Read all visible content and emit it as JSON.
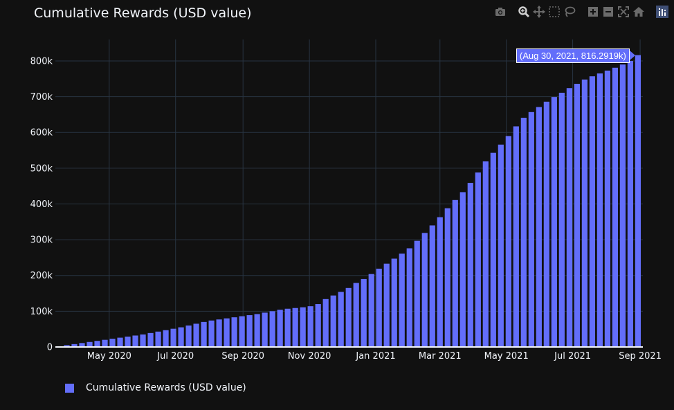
{
  "header": {
    "title": "Cumulative Rewards (USD value)"
  },
  "modebar": {
    "buttons": [
      {
        "name": "camera-icon"
      },
      {
        "name": "zoom-icon"
      },
      {
        "name": "pan-icon"
      },
      {
        "name": "box-select-icon"
      },
      {
        "name": "lasso-select-icon"
      },
      {
        "name": "zoom-in-icon"
      },
      {
        "name": "zoom-out-icon"
      },
      {
        "name": "autoscale-icon"
      },
      {
        "name": "reset-axes-icon"
      },
      {
        "name": "plotly-logo-icon"
      }
    ]
  },
  "tooltip": {
    "text": "(Aug 30, 2021, 816.2919k)"
  },
  "legend": {
    "label": "Cumulative Rewards (USD value)"
  },
  "colors": {
    "bar": "#636efa",
    "background": "#111111",
    "grid": "#283442",
    "text": "#f2f5fa"
  },
  "chart_data": {
    "type": "bar",
    "title": "Cumulative Rewards (USD value)",
    "xlabel": "",
    "ylabel": "",
    "ylim": [
      0,
      860000
    ],
    "grid": true,
    "legend_position": "bottom-left",
    "x_tick_labels": [
      "May 2020",
      "Jul 2020",
      "Sep 2020",
      "Nov 2020",
      "Jan 2021",
      "Mar 2021",
      "May 2021",
      "Jul 2021",
      "Sep 2021"
    ],
    "y_ticks": [
      0,
      100000,
      200000,
      300000,
      400000,
      500000,
      600000,
      700000,
      800000
    ],
    "y_tick_labels": [
      "0",
      "100k",
      "200k",
      "300k",
      "400k",
      "500k",
      "600k",
      "700k",
      "800k"
    ],
    "series": [
      {
        "name": "Cumulative Rewards (USD value)",
        "x": [
          "2020-03-16",
          "2020-03-23",
          "2020-03-30",
          "2020-04-06",
          "2020-04-13",
          "2020-04-20",
          "2020-04-27",
          "2020-05-04",
          "2020-05-11",
          "2020-05-18",
          "2020-05-25",
          "2020-06-01",
          "2020-06-08",
          "2020-06-15",
          "2020-06-22",
          "2020-06-29",
          "2020-07-06",
          "2020-07-13",
          "2020-07-20",
          "2020-07-27",
          "2020-08-03",
          "2020-08-10",
          "2020-08-17",
          "2020-08-24",
          "2020-08-31",
          "2020-09-07",
          "2020-09-14",
          "2020-09-21",
          "2020-09-28",
          "2020-10-05",
          "2020-10-12",
          "2020-10-19",
          "2020-10-26",
          "2020-11-02",
          "2020-11-09",
          "2020-11-16",
          "2020-11-23",
          "2020-11-30",
          "2020-12-07",
          "2020-12-14",
          "2020-12-21",
          "2020-12-28",
          "2021-01-04",
          "2021-01-11",
          "2021-01-18",
          "2021-01-25",
          "2021-02-01",
          "2021-02-08",
          "2021-02-15",
          "2021-02-22",
          "2021-03-01",
          "2021-03-08",
          "2021-03-15",
          "2021-03-22",
          "2021-03-29",
          "2021-04-05",
          "2021-04-12",
          "2021-04-19",
          "2021-04-26",
          "2021-05-03",
          "2021-05-10",
          "2021-05-17",
          "2021-05-24",
          "2021-05-31",
          "2021-06-07",
          "2021-06-14",
          "2021-06-21",
          "2021-06-28",
          "2021-07-05",
          "2021-07-12",
          "2021-07-19",
          "2021-07-26",
          "2021-08-02",
          "2021-08-09",
          "2021-08-16",
          "2021-08-23",
          "2021-08-30"
        ],
        "values": [
          2000,
          5000,
          8000,
          11000,
          14000,
          17000,
          20000,
          23000,
          26000,
          29000,
          32000,
          35000,
          39000,
          43000,
          47000,
          51000,
          55000,
          60000,
          65000,
          70000,
          74000,
          77000,
          80000,
          83000,
          86000,
          89000,
          92000,
          96000,
          100000,
          104000,
          107000,
          109000,
          111000,
          114000,
          120000,
          134000,
          144000,
          154000,
          165000,
          179000,
          190000,
          204000,
          219000,
          233000,
          247000,
          261000,
          276000,
          297000,
          319000,
          340000,
          363000,
          388000,
          411000,
          433000,
          459000,
          488000,
          519000,
          543000,
          566000,
          590000,
          617000,
          641000,
          657000,
          671000,
          686000,
          699000,
          711000,
          724000,
          736000,
          748000,
          757000,
          765000,
          773000,
          781000,
          790000,
          800000,
          816292
        ]
      }
    ]
  }
}
